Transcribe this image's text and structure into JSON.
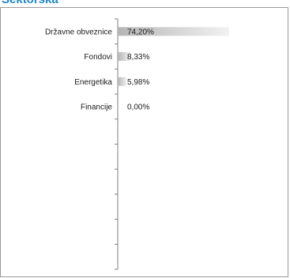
{
  "chart_data": {
    "type": "bar",
    "orientation": "horizontal",
    "title": "Sektorska",
    "categories": [
      "Državne obveznice",
      "Fondovi",
      "Energetika",
      "Financije"
    ],
    "values": [
      74.2,
      8.33,
      5.98,
      0.0
    ],
    "value_labels": [
      "74,20%",
      "8,33%",
      "5,98%",
      "0,00%"
    ],
    "xlim": [
      0,
      100
    ],
    "bar_color": "#c9c9c9"
  }
}
